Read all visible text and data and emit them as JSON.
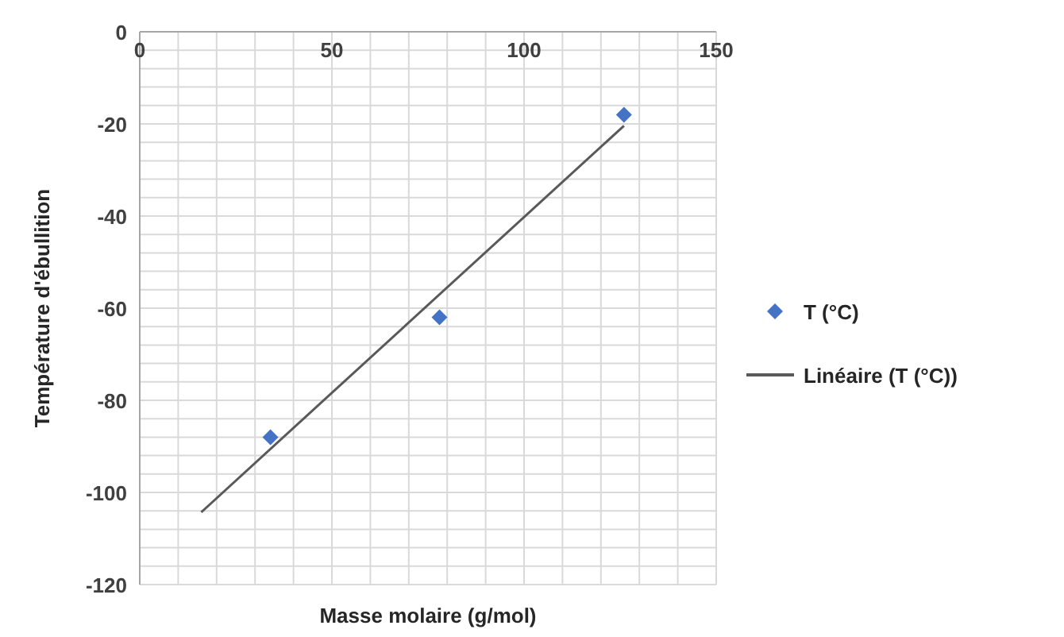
{
  "chart_data": {
    "type": "scatter",
    "xlabel": "Masse molaire (g/mol)",
    "ylabel": "Température d'ébullition",
    "xlim": [
      0,
      150
    ],
    "ylim": [
      -120,
      0
    ],
    "xticks": [
      0,
      {
        "value": 10,
        "label": null
      },
      {
        "value": 20,
        "label": null
      },
      {
        "value": 30,
        "label": null
      },
      {
        "value": 40,
        "label": null
      },
      50,
      {
        "value": 60,
        "label": null
      },
      {
        "value": 70,
        "label": null
      },
      {
        "value": 80,
        "label": null
      },
      {
        "value": 90,
        "label": null
      },
      100,
      {
        "value": 110,
        "label": null
      },
      {
        "value": 120,
        "label": null
      },
      {
        "value": 130,
        "label": null
      },
      {
        "value": 140,
        "label": null
      },
      150
    ],
    "yticks": [
      -120,
      {
        "value": -116,
        "label": null
      },
      {
        "value": -112,
        "label": null
      },
      {
        "value": -108,
        "label": null
      },
      {
        "value": -104,
        "label": null
      },
      -100,
      {
        "value": -96,
        "label": null
      },
      {
        "value": -92,
        "label": null
      },
      {
        "value": -88,
        "label": null
      },
      {
        "value": -84,
        "label": null
      },
      -80,
      {
        "value": -76,
        "label": null
      },
      {
        "value": -72,
        "label": null
      },
      {
        "value": -68,
        "label": null
      },
      {
        "value": -64,
        "label": null
      },
      -60,
      {
        "value": -56,
        "label": null
      },
      {
        "value": -52,
        "label": null
      },
      {
        "value": -48,
        "label": null
      },
      {
        "value": -44,
        "label": null
      },
      -40,
      {
        "value": -36,
        "label": null
      },
      {
        "value": -32,
        "label": null
      },
      {
        "value": -28,
        "label": null
      },
      {
        "value": -24,
        "label": null
      },
      -20,
      {
        "value": -16,
        "label": null
      },
      {
        "value": -12,
        "label": null
      },
      {
        "value": -8,
        "label": null
      },
      {
        "value": -4,
        "label": null
      },
      0
    ],
    "grid": true,
    "legend": "right",
    "marker": "diamond",
    "series": [
      {
        "name": "T (°C)",
        "color": "#4472c4",
        "x": [
          34,
          78,
          126
        ],
        "values": [
          -88,
          -62,
          -18
        ]
      },
      {
        "name": "Linéaire (T (°C))",
        "type": "line",
        "color": "#595959",
        "line_style": "solid",
        "marker": "none",
        "x": [
          16,
          126
        ],
        "values": [
          -104.3,
          -20.4
        ]
      }
    ]
  }
}
